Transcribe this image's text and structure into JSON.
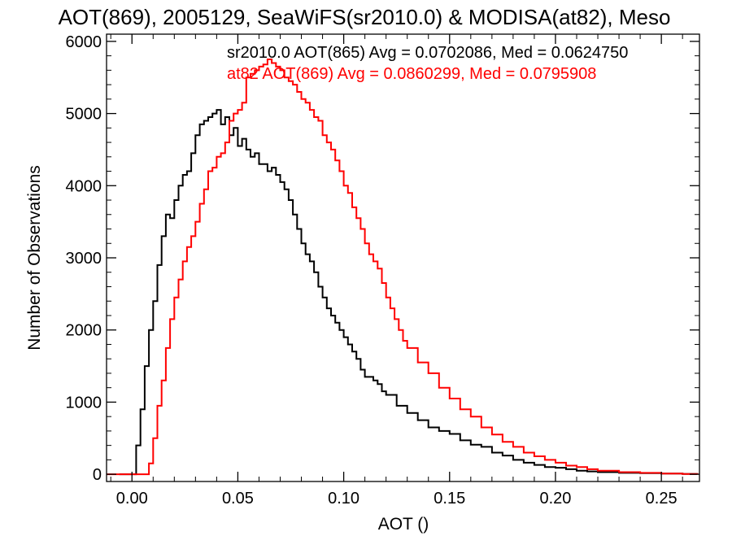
{
  "chart_data": {
    "type": "line",
    "title": "AOT(869), 2005129, SeaWiFS(sr2010.0) & MODISA(at82), Meso",
    "xlabel": "AOT ()",
    "ylabel": "Number of Observations",
    "xlim": [
      -0.012,
      0.268
    ],
    "ylim": [
      -100,
      6100
    ],
    "x_ticks": [
      0.0,
      0.05,
      0.1,
      0.15,
      0.2,
      0.25
    ],
    "x_tick_labels": [
      "0.00",
      "0.05",
      "0.10",
      "0.15",
      "0.20",
      "0.25"
    ],
    "y_ticks": [
      0,
      1000,
      2000,
      3000,
      4000,
      5000,
      6000
    ],
    "y_tick_labels": [
      "0",
      "1000",
      "2000",
      "3000",
      "4000",
      "5000",
      "6000"
    ],
    "grid": false,
    "step": true,
    "legend_position": "top-right",
    "series": [
      {
        "name": "sr2010.0 AOT(865) Avg = 0.0702086, Med = 0.0624750",
        "color": "#000000",
        "x": [
          -0.006,
          0.0,
          0.002,
          0.004,
          0.006,
          0.008,
          0.01,
          0.012,
          0.014,
          0.016,
          0.018,
          0.02,
          0.022,
          0.024,
          0.026,
          0.028,
          0.03,
          0.032,
          0.034,
          0.036,
          0.038,
          0.04,
          0.042,
          0.044,
          0.046,
          0.048,
          0.05,
          0.052,
          0.054,
          0.056,
          0.058,
          0.06,
          0.062,
          0.064,
          0.066,
          0.068,
          0.07,
          0.072,
          0.074,
          0.076,
          0.078,
          0.08,
          0.082,
          0.084,
          0.086,
          0.088,
          0.09,
          0.092,
          0.094,
          0.096,
          0.098,
          0.1,
          0.102,
          0.104,
          0.106,
          0.108,
          0.11,
          0.112,
          0.114,
          0.116,
          0.118,
          0.12,
          0.125,
          0.13,
          0.135,
          0.14,
          0.145,
          0.15,
          0.155,
          0.16,
          0.165,
          0.17,
          0.175,
          0.18,
          0.185,
          0.19,
          0.195,
          0.2,
          0.205,
          0.21,
          0.215,
          0.22,
          0.23,
          0.24,
          0.25,
          0.26,
          0.267
        ],
        "y": [
          0,
          0,
          400,
          900,
          1500,
          2000,
          2400,
          2900,
          3300,
          3600,
          3550,
          3800,
          4000,
          4150,
          4200,
          4450,
          4700,
          4850,
          4900,
          4950,
          5000,
          5050,
          4850,
          4950,
          4700,
          4800,
          4550,
          4650,
          4500,
          4400,
          4450,
          4300,
          4300,
          4200,
          4250,
          4150,
          4050,
          3950,
          3800,
          3600,
          3400,
          3200,
          3050,
          2950,
          2800,
          2600,
          2450,
          2300,
          2200,
          2100,
          2000,
          1900,
          1800,
          1700,
          1600,
          1450,
          1350,
          1350,
          1300,
          1250,
          1150,
          1100,
          950,
          850,
          750,
          650,
          600,
          560,
          470,
          410,
          380,
          300,
          260,
          200,
          160,
          130,
          100,
          90,
          70,
          50,
          40,
          30,
          20,
          15,
          10,
          5,
          0
        ]
      },
      {
        "name": "at82 AOT(869) Avg = 0.0860299, Med = 0.0795908",
        "color": "#ff0000",
        "x": [
          -0.012,
          0.0,
          0.005,
          0.008,
          0.01,
          0.012,
          0.014,
          0.016,
          0.018,
          0.02,
          0.022,
          0.024,
          0.026,
          0.028,
          0.03,
          0.032,
          0.034,
          0.036,
          0.038,
          0.04,
          0.042,
          0.044,
          0.046,
          0.048,
          0.05,
          0.052,
          0.054,
          0.056,
          0.058,
          0.06,
          0.062,
          0.064,
          0.066,
          0.068,
          0.07,
          0.072,
          0.074,
          0.076,
          0.078,
          0.08,
          0.082,
          0.084,
          0.086,
          0.088,
          0.09,
          0.092,
          0.094,
          0.096,
          0.098,
          0.1,
          0.102,
          0.104,
          0.106,
          0.108,
          0.11,
          0.112,
          0.114,
          0.116,
          0.118,
          0.12,
          0.122,
          0.124,
          0.126,
          0.128,
          0.13,
          0.135,
          0.14,
          0.145,
          0.15,
          0.155,
          0.16,
          0.165,
          0.17,
          0.175,
          0.18,
          0.185,
          0.19,
          0.195,
          0.2,
          0.205,
          0.21,
          0.215,
          0.22,
          0.23,
          0.24,
          0.25,
          0.26,
          0.267
        ],
        "y": [
          0,
          0,
          0,
          150,
          500,
          950,
          1300,
          1750,
          2150,
          2450,
          2700,
          2950,
          3150,
          3300,
          3500,
          3750,
          3950,
          4200,
          4250,
          4400,
          4450,
          4600,
          4900,
          5000,
          5050,
          5150,
          5500,
          5550,
          5600,
          5650,
          5680,
          5750,
          5700,
          5650,
          5600,
          5500,
          5450,
          5400,
          5300,
          5200,
          5150,
          5050,
          4950,
          4900,
          4700,
          4600,
          4500,
          4350,
          4200,
          4000,
          3900,
          3700,
          3550,
          3400,
          3200,
          3050,
          2950,
          2850,
          2650,
          2450,
          2300,
          2150,
          2000,
          1850,
          1750,
          1550,
          1400,
          1200,
          1050,
          900,
          800,
          650,
          550,
          450,
          380,
          300,
          250,
          200,
          160,
          120,
          100,
          70,
          50,
          30,
          20,
          10,
          5,
          0
        ]
      }
    ]
  }
}
